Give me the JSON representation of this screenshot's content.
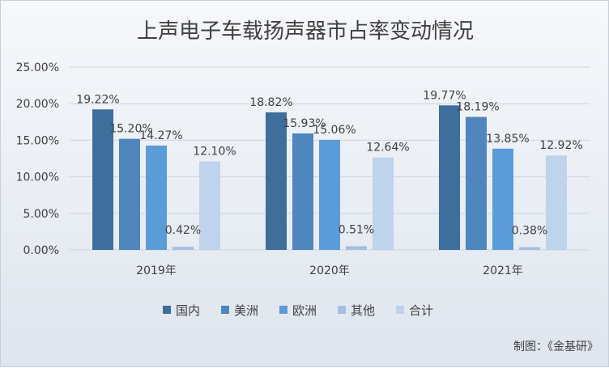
{
  "chart_data": {
    "type": "bar",
    "title": "上声电子车载扬声器市占率变动情况",
    "categories": [
      "2019年",
      "2020年",
      "2021年"
    ],
    "series": [
      {
        "name": "国内",
        "color": "#3e6e9c",
        "values": [
          19.22,
          18.82,
          19.77
        ],
        "labels": [
          "19.22%",
          "18.82%",
          "19.77%"
        ]
      },
      {
        "name": "美洲",
        "color": "#4e86bd",
        "values": [
          15.2,
          15.93,
          18.19
        ],
        "labels": [
          "15.20%",
          "15.93%",
          "18.19%"
        ]
      },
      {
        "name": "欧洲",
        "color": "#5b9bd8",
        "values": [
          14.27,
          15.06,
          13.85
        ],
        "labels": [
          "14.27%",
          "15.06%",
          "13.85%"
        ]
      },
      {
        "name": "其他",
        "color": "#a3bfe2",
        "values": [
          0.42,
          0.51,
          0.38
        ],
        "labels": [
          "0.42%",
          "0.51%",
          "0.38%"
        ]
      },
      {
        "name": "合计",
        "color": "#bed3ec",
        "values": [
          12.1,
          12.64,
          12.92
        ],
        "labels": [
          "12.10%",
          "12.64%",
          "12.92%"
        ]
      }
    ],
    "ylim": [
      0,
      25
    ],
    "yticks": [
      0,
      5,
      10,
      15,
      20,
      25
    ],
    "ytick_labels": [
      "0.00%",
      "5.00%",
      "10.00%",
      "15.00%",
      "20.00%",
      "25.00%"
    ],
    "xlabel": "",
    "ylabel": "",
    "grid": true,
    "legend_position": "bottom"
  },
  "source_note": "制图：《金基研》"
}
